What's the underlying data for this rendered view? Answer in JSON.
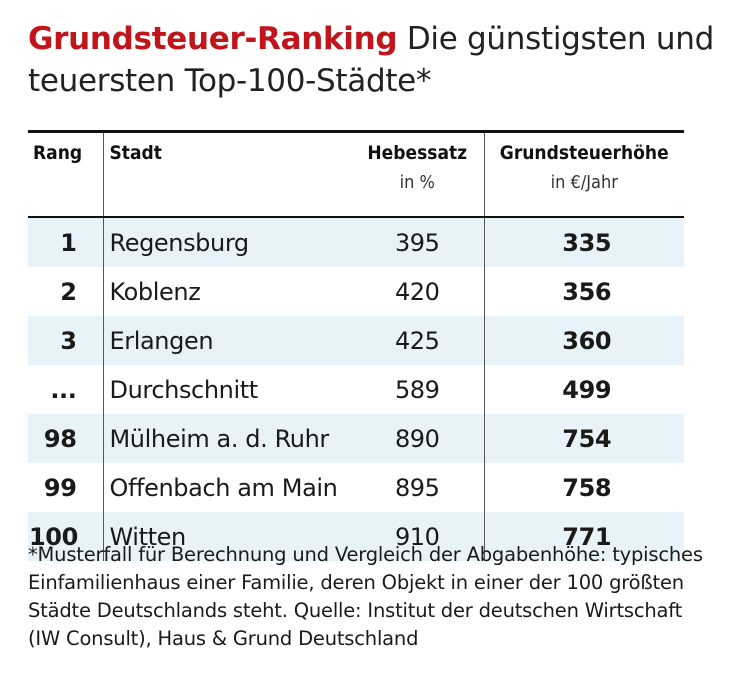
{
  "title": {
    "highlight": "Grundsteuer-Ranking",
    "rest": "Die günstigsten und teuersten Top-100-Städte*"
  },
  "table": {
    "headers": {
      "rank": "Rang",
      "city": "Stadt",
      "rate": "Hebessatz",
      "rate_unit": "in %",
      "tax": "Grundsteuerhöhe",
      "tax_unit": "in €/Jahr"
    },
    "rows": [
      {
        "rank": "1",
        "city": "Regensburg",
        "rate": "395",
        "tax": "335"
      },
      {
        "rank": "2",
        "city": "Koblenz",
        "rate": "420",
        "tax": "356"
      },
      {
        "rank": "3",
        "city": "Erlangen",
        "rate": "425",
        "tax": "360"
      },
      {
        "rank": "...",
        "city": "Durchschnitt",
        "rate": "589",
        "tax": "499"
      },
      {
        "rank": "98",
        "city": "Mülheim a. d. Ruhr",
        "rate": "890",
        "tax": "754"
      },
      {
        "rank": "99",
        "city": "Offenbach am Main",
        "rate": "895",
        "tax": "758"
      },
      {
        "rank": "100",
        "city": "Witten",
        "rate": "910",
        "tax": "771"
      }
    ]
  },
  "footnote": "*Musterfall für Berechnung und Vergleich der Abgabenhöhe: typisches Einfamilienhaus einer Familie, deren Objekt in einer der 100 größten Städte Deutschlands steht. Quelle: Institut der deutschen Wirtschaft (IW Consult), Haus & Grund Deutschland",
  "colors": {
    "accent": "#c0151b",
    "row_stripe": "#e8f3f9"
  }
}
